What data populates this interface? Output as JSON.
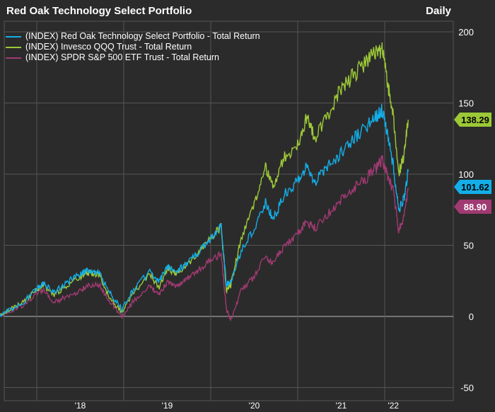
{
  "title": "Red Oak Technology Select Portfolio",
  "frequency": "Daily",
  "chart_data": {
    "type": "line",
    "title": "Red Oak Technology Select Portfolio",
    "ylim": [
      -50,
      200
    ],
    "yticks": [
      -50,
      0,
      50,
      100,
      150,
      200
    ],
    "ytick_labels": [
      "-50",
      "0",
      "50",
      "100",
      "150",
      "200"
    ],
    "xticks": [
      2018.5,
      2019.5,
      2020.5,
      2021.5,
      2022.1
    ],
    "xtick_labels": [
      "'18",
      "'19",
      "'20",
      "'21",
      "'22"
    ],
    "year_gridlines": [
      2018,
      2019,
      2020,
      2021,
      2022
    ],
    "grid": true,
    "legend_position": "top-left",
    "series": [
      {
        "name": "(INDEX) Red Oak Technology Select Portfolio - Total Return",
        "color": "#13aee8",
        "last": "101.62",
        "x": [
          2017.55,
          2017.7,
          2017.85,
          2018.0,
          2018.08,
          2018.2,
          2018.35,
          2018.5,
          2018.6,
          2018.72,
          2018.85,
          2018.98,
          2019.1,
          2019.3,
          2019.4,
          2019.5,
          2019.6,
          2019.72,
          2019.85,
          2020.0,
          2020.12,
          2020.18,
          2020.23,
          2020.35,
          2020.5,
          2020.63,
          2020.72,
          2020.85,
          2021.0,
          2021.1,
          2021.2,
          2021.35,
          2021.5,
          2021.65,
          2021.8,
          2021.9,
          2021.97,
          2022.03,
          2022.1,
          2022.16,
          2022.22,
          2022.27
        ],
        "y": [
          0,
          5,
          10,
          20,
          23,
          17,
          24,
          30,
          33,
          30,
          16,
          5,
          18,
          32,
          24,
          35,
          31,
          37,
          45,
          55,
          64,
          22,
          25,
          46,
          62,
          80,
          68,
          86,
          95,
          105,
          95,
          106,
          115,
          125,
          134,
          140,
          145,
          128,
          105,
          75,
          82,
          101.62
        ]
      },
      {
        "name": "(INDEX) Invesco QQQ Trust - Total Return",
        "color": "#9cc837",
        "last": "138.29",
        "x": [
          2017.55,
          2017.7,
          2017.85,
          2018.0,
          2018.08,
          2018.2,
          2018.35,
          2018.5,
          2018.6,
          2018.72,
          2018.85,
          2018.98,
          2019.1,
          2019.3,
          2019.4,
          2019.5,
          2019.6,
          2019.72,
          2019.85,
          2020.0,
          2020.12,
          2020.18,
          2020.23,
          2020.35,
          2020.5,
          2020.63,
          2020.72,
          2020.85,
          2021.0,
          2021.1,
          2021.2,
          2021.35,
          2021.5,
          2021.65,
          2021.8,
          2021.9,
          2021.97,
          2022.03,
          2022.1,
          2022.16,
          2022.22,
          2022.27
        ],
        "y": [
          0,
          5,
          10,
          19,
          22,
          15,
          22,
          28,
          31,
          29,
          12,
          3,
          16,
          30,
          20,
          34,
          30,
          36,
          44,
          55,
          63,
          18,
          22,
          55,
          80,
          105,
          92,
          112,
          120,
          140,
          125,
          142,
          160,
          170,
          180,
          185,
          188,
          165,
          140,
          100,
          112,
          138.29
        ]
      },
      {
        "name": "(INDEX) SPDR S&P 500 ETF Trust - Total Return",
        "color": "#a03a72",
        "last": "88.90",
        "x": [
          2017.55,
          2017.7,
          2017.85,
          2018.0,
          2018.08,
          2018.2,
          2018.35,
          2018.5,
          2018.6,
          2018.72,
          2018.85,
          2018.98,
          2019.1,
          2019.3,
          2019.4,
          2019.5,
          2019.6,
          2019.72,
          2019.85,
          2020.0,
          2020.12,
          2020.18,
          2020.23,
          2020.35,
          2020.5,
          2020.63,
          2020.72,
          2020.85,
          2021.0,
          2021.1,
          2021.2,
          2021.35,
          2021.5,
          2021.65,
          2021.8,
          2021.9,
          2021.97,
          2022.03,
          2022.1,
          2022.16,
          2022.22,
          2022.27
        ],
        "y": [
          0,
          4,
          8,
          16,
          18,
          10,
          14,
          18,
          22,
          22,
          10,
          0,
          10,
          22,
          15,
          24,
          22,
          26,
          32,
          40,
          44,
          5,
          -3,
          18,
          28,
          42,
          38,
          50,
          58,
          66,
          62,
          72,
          82,
          90,
          98,
          104,
          110,
          100,
          88,
          60,
          70,
          88.9
        ]
      }
    ]
  }
}
